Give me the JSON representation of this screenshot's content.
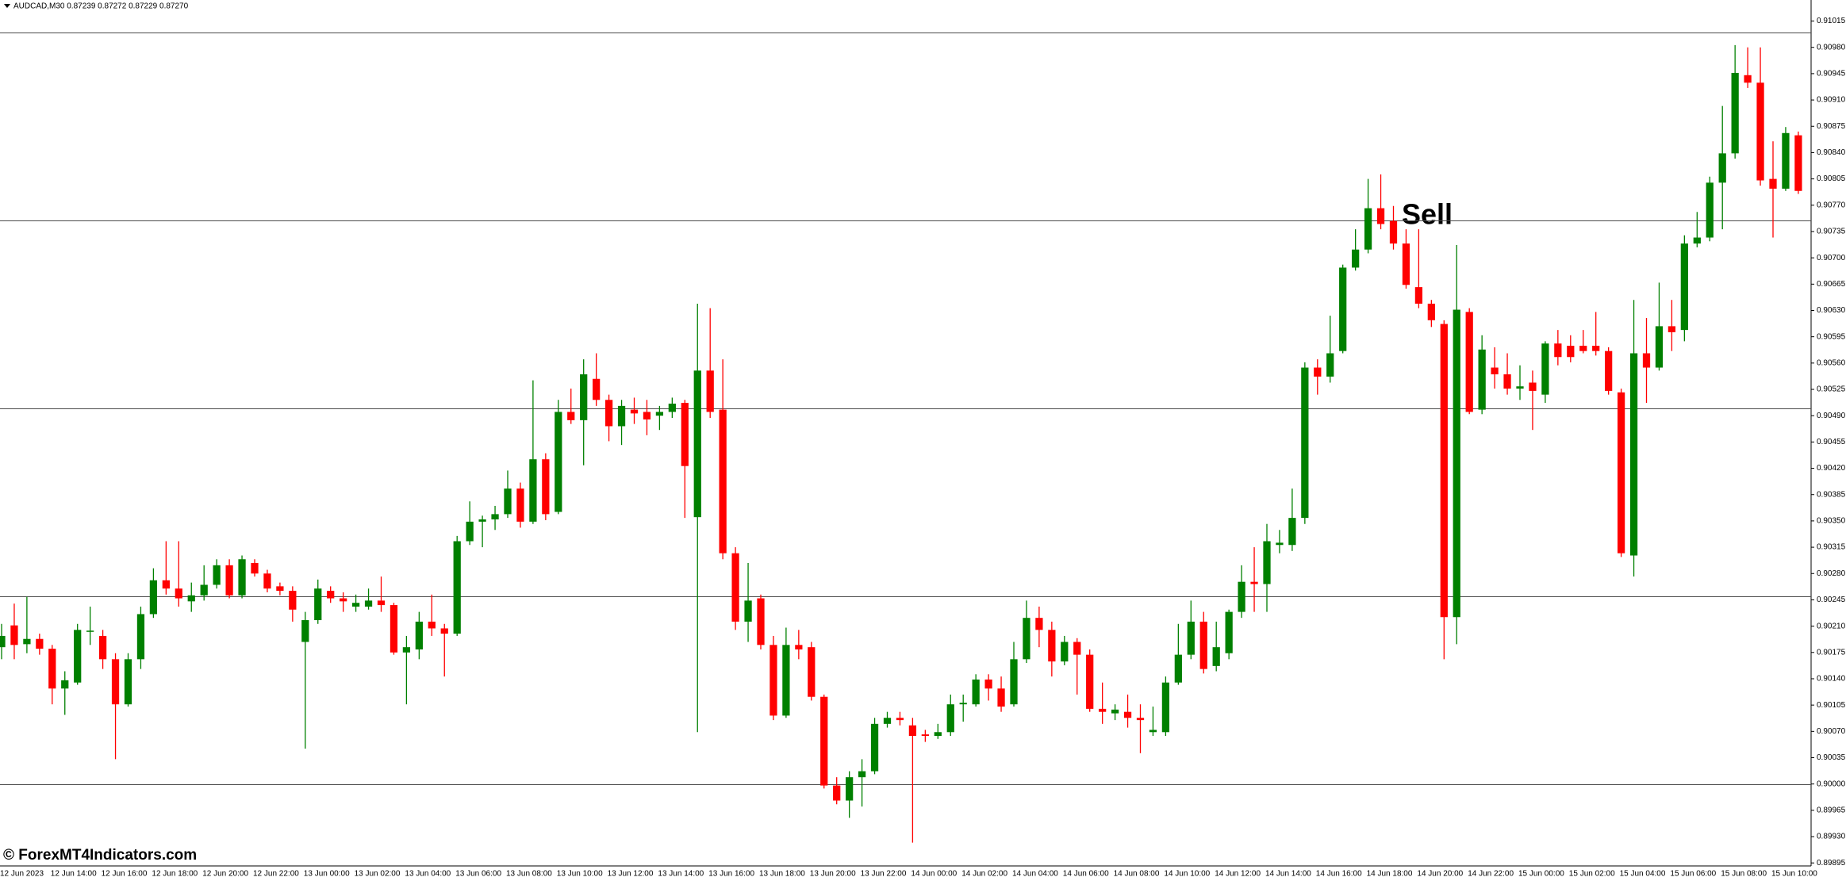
{
  "header": "AUDCAD,M30  0.87239 0.87272 0.87229 0.87270",
  "watermark": "© ForexMT4Indicators.com",
  "annotation": "Sell",
  "chart_data": {
    "type": "candlestick",
    "up_color": "#008000",
    "down_color": "#ff0000",
    "level_color": "#4a4a4a",
    "ylim": [
      0.89891,
      0.91043
    ],
    "yticks": [
      0.91015,
      {
        "value": 0.9098,
        "label": "0.90980"
      },
      0.90945,
      {
        "value": 0.9091,
        "label": "0.90910"
      },
      0.90875,
      {
        "value": 0.9084,
        "label": "0.90840"
      },
      0.90805,
      {
        "value": 0.9077,
        "label": "0.90770"
      },
      0.90735,
      {
        "value": 0.907,
        "label": "0.90700"
      },
      0.90665,
      {
        "value": 0.9063,
        "label": "0.90630"
      },
      0.90595,
      {
        "value": 0.9056,
        "label": "0.90560"
      },
      0.90525,
      {
        "value": 0.9049,
        "label": "0.90490"
      },
      0.90455,
      {
        "value": 0.9042,
        "label": "0.90420"
      },
      0.90385,
      {
        "value": 0.9035,
        "label": "0.90350"
      },
      0.90315,
      {
        "value": 0.9028,
        "label": "0.90280"
      },
      0.90245,
      {
        "value": 0.9021,
        "label": "0.90210"
      },
      0.90175,
      {
        "value": 0.9014,
        "label": "0.90140"
      },
      0.90105,
      {
        "value": 0.9007,
        "label": "0.90070"
      },
      0.90035,
      {
        "value": 0.9,
        "label": "0.90000"
      },
      0.89965,
      {
        "value": 0.8993,
        "label": "0.89930"
      },
      0.89895
    ],
    "hlines": [
      0.91,
      0.9075,
      0.905,
      0.9025,
      0.9
    ],
    "xtick_labels": [
      "12 Jun 2023",
      "12 Jun 14:00",
      "12 Jun 16:00",
      "12 Jun 18:00",
      "12 Jun 20:00",
      "12 Jun 22:00",
      "13 Jun 00:00",
      "13 Jun 02:00",
      "13 Jun 04:00",
      "13 Jun 06:00",
      "13 Jun 08:00",
      "13 Jun 10:00",
      "13 Jun 12:00",
      "13 Jun 14:00",
      "13 Jun 16:00",
      "13 Jun 18:00",
      "13 Jun 20:00",
      "13 Jun 22:00",
      "14 Jun 00:00",
      "14 Jun 02:00",
      "14 Jun 04:00",
      "14 Jun 06:00",
      "14 Jun 08:00",
      "14 Jun 10:00",
      "14 Jun 12:00",
      "14 Jun 14:00",
      "14 Jun 16:00",
      "14 Jun 18:00",
      "14 Jun 20:00",
      "14 Jun 22:00",
      "15 Jun 00:00",
      "15 Jun 02:00",
      "15 Jun 04:00",
      "15 Jun 06:00",
      "15 Jun 08:00",
      "15 Jun 10:00"
    ],
    "open": [
      0.90182,
      0.90211,
      0.90186,
      0.90193,
      0.9018,
      0.90127,
      0.90135,
      0.90204,
      0.90197,
      0.90166,
      0.90106,
      0.90166,
      0.90226,
      0.90271,
      0.9026,
      0.90243,
      0.90251,
      0.90265,
      0.90291,
      0.90251,
      0.90294,
      0.9028,
      0.90263,
      0.90257,
      0.90189,
      0.90218,
      0.90257,
      0.90247,
      0.90236,
      0.90236,
      0.90244,
      0.90238,
      0.90175,
      0.90179,
      0.90216,
      0.90207,
      0.902,
      0.90323,
      0.90349,
      0.90352,
      0.90359,
      0.90393,
      0.90349,
      0.90432,
      0.90362,
      0.90495,
      0.90484,
      0.90539,
      0.90511,
      0.90476,
      0.90498,
      0.90495,
      0.9049,
      0.90495,
      0.90507,
      0.90355,
      0.9055,
      0.90498,
      0.90307,
      0.90216,
      0.90247,
      0.90185,
      0.90091,
      0.90185,
      0.90182,
      0.90116,
      0.89998,
      0.89978,
      0.90009,
      0.90017,
      0.9008,
      0.90088,
      0.90078,
      0.90066,
      0.90064,
      0.90069,
      0.90106,
      0.90106,
      0.90139,
      0.90127,
      0.90106,
      0.90166,
      0.90221,
      0.90205,
      0.90163,
      0.90189,
      0.90172,
      0.901,
      0.90094,
      0.90096,
      0.90088,
      0.90069,
      0.90069,
      0.90135,
      0.90172,
      0.90216,
      0.90157,
      0.90174,
      0.90229,
      0.90269,
      0.90266,
      0.90318,
      0.90318,
      0.90354,
      0.90554,
      0.90542,
      0.90576,
      0.90687,
      0.90711,
      0.90766,
      0.90749,
      0.90719,
      0.90661,
      0.90639,
      0.90612,
      0.90222,
      0.90628,
      0.90498,
      0.90554,
      0.90545,
      0.90526,
      0.90534,
      0.90518,
      0.90586,
      0.90583,
      0.90583,
      0.90583,
      0.90576,
      0.90521,
      0.90304,
      0.90573,
      0.90554,
      0.90609,
      0.90604,
      0.90719,
      0.90727,
      0.908,
      0.90839,
      0.90943,
      0.90933,
      0.90805,
      0.90792,
      0.90863
    ],
    "high": [
      0.90213,
      0.9024,
      0.90249,
      0.902,
      0.90185,
      0.9015,
      0.90213,
      0.90236,
      0.90205,
      0.90174,
      0.90174,
      0.90236,
      0.90287,
      0.90323,
      0.90323,
      0.90268,
      0.90291,
      0.90299,
      0.90299,
      0.90304,
      0.90299,
      0.90285,
      0.90268,
      0.90263,
      0.90229,
      0.90272,
      0.90263,
      0.90255,
      0.90252,
      0.9026,
      0.90276,
      0.90241,
      0.90197,
      0.90229,
      0.90252,
      0.90213,
      0.9033,
      0.90376,
      0.90357,
      0.9037,
      0.90417,
      0.90401,
      0.90537,
      0.9044,
      0.90511,
      0.90526,
      0.90565,
      0.90573,
      0.90518,
      0.90511,
      0.90514,
      0.90511,
      0.90503,
      0.90514,
      0.90511,
      0.90639,
      0.90633,
      0.90565,
      0.90315,
      0.90294,
      0.90252,
      0.90197,
      0.90208,
      0.90205,
      0.90189,
      0.90119,
      0.90009,
      0.90017,
      0.90033,
      0.90088,
      0.90096,
      0.90096,
      0.90088,
      0.90072,
      0.9008,
      0.90119,
      0.90119,
      0.90146,
      0.90146,
      0.90143,
      0.90189,
      0.90244,
      0.90236,
      0.90216,
      0.90197,
      0.90194,
      0.90179,
      0.90135,
      0.90106,
      0.90119,
      0.90106,
      0.90103,
      0.90143,
      0.90213,
      0.90244,
      0.90229,
      0.90216,
      0.90232,
      0.90291,
      0.90315,
      0.90346,
      0.90338,
      0.90393,
      0.90561,
      0.90565,
      0.90623,
      0.90691,
      0.90738,
      0.90805,
      0.90811,
      0.90769,
      0.90738,
      0.90738,
      0.90644,
      0.90617,
      0.90717,
      0.90633,
      0.90597,
      0.90581,
      0.90573,
      0.90557,
      0.9055,
      0.90589,
      0.90604,
      0.90597,
      0.90604,
      0.90628,
      0.90581,
      0.90526,
      0.90644,
      0.9062,
      0.90667,
      0.90644,
      0.9073,
      0.90761,
      0.90808,
      0.90902,
      0.90983,
      0.9098,
      0.9098,
      0.90855,
      0.90874,
      0.90868
    ],
    "low": [
      0.90166,
      0.90166,
      0.90174,
      0.90172,
      0.90106,
      0.90092,
      0.90132,
      0.90185,
      0.90153,
      0.90033,
      0.90103,
      0.90153,
      0.90221,
      0.90252,
      0.90236,
      0.90229,
      0.90244,
      0.9026,
      0.90247,
      0.90247,
      0.90276,
      0.90255,
      0.90251,
      0.90216,
      0.90047,
      0.90213,
      0.90241,
      0.90229,
      0.90229,
      0.90232,
      0.90229,
      0.90172,
      0.90106,
      0.90166,
      0.90197,
      0.90143,
      0.90197,
      0.90318,
      0.90315,
      0.90338,
      0.90354,
      0.90341,
      0.90346,
      0.90351,
      0.90359,
      0.90479,
      0.90424,
      0.90503,
      0.90456,
      0.90451,
      0.90479,
      0.90464,
      0.90471,
      0.90487,
      0.90354,
      0.90069,
      0.90487,
      0.90299,
      0.90205,
      0.90189,
      0.90179,
      0.90085,
      0.90088,
      0.90166,
      0.90111,
      0.89994,
      0.89973,
      0.89955,
      0.8997,
      0.90013,
      0.90075,
      0.90078,
      0.89922,
      0.90056,
      0.9006,
      0.90064,
      0.90083,
      0.90103,
      0.90111,
      0.90096,
      0.90103,
      0.90161,
      0.90182,
      0.90143,
      0.90158,
      0.90119,
      0.90096,
      0.9008,
      0.90085,
      0.90075,
      0.90041,
      0.90064,
      0.90064,
      0.90132,
      0.90166,
      0.90147,
      0.9015,
      0.90166,
      0.90221,
      0.90229,
      0.90229,
      0.90307,
      0.9031,
      0.90346,
      0.90518,
      0.90534,
      0.90573,
      0.90683,
      0.90706,
      0.90738,
      0.90711,
      0.90659,
      0.90633,
      0.90608,
      0.90166,
      0.90186,
      0.90492,
      0.90492,
      0.90526,
      0.90518,
      0.90511,
      0.90471,
      0.90507,
      0.90557,
      0.90561,
      0.90573,
      0.9057,
      0.90518,
      0.90302,
      0.90276,
      0.90507,
      0.9055,
      0.90576,
      0.90589,
      0.90714,
      0.90722,
      0.90738,
      0.90832,
      0.90926,
      0.90796,
      0.90727,
      0.90789,
      0.90785
    ],
    "close": [
      0.90197,
      0.90185,
      0.90193,
      0.9018,
      0.90127,
      0.90138,
      0.90205,
      0.90204,
      0.90166,
      0.90106,
      0.90166,
      0.90226,
      0.90271,
      0.9026,
      0.90247,
      0.90251,
      0.90265,
      0.90291,
      0.90251,
      0.90299,
      0.9028,
      0.9026,
      0.90257,
      0.90232,
      0.90218,
      0.9026,
      0.90247,
      0.90243,
      0.90241,
      0.90244,
      0.90238,
      0.90175,
      0.90182,
      0.90216,
      0.90207,
      0.902,
      0.90323,
      0.90349,
      0.90352,
      0.90359,
      0.90393,
      0.90349,
      0.90432,
      0.90359,
      0.90495,
      0.90484,
      0.90545,
      0.90511,
      0.90476,
      0.90503,
      0.90493,
      0.90485,
      0.90495,
      0.90506,
      0.90423,
      0.9055,
      0.90495,
      0.90307,
      0.90216,
      0.90244,
      0.90185,
      0.90091,
      0.90185,
      0.90179,
      0.90116,
      0.89998,
      0.89978,
      0.90009,
      0.90017,
      0.9008,
      0.90088,
      0.90085,
      0.90064,
      0.90064,
      0.90069,
      0.90106,
      0.90108,
      0.90139,
      0.90127,
      0.90103,
      0.90166,
      0.90221,
      0.90205,
      0.90163,
      0.90189,
      0.90172,
      0.901,
      0.90096,
      0.90099,
      0.90088,
      0.90085,
      0.90072,
      0.90135,
      0.90172,
      0.90216,
      0.90153,
      0.90182,
      0.90229,
      0.90269,
      0.90266,
      0.90323,
      0.90321,
      0.90354,
      0.90554,
      0.90542,
      0.90573,
      0.90687,
      0.90711,
      0.90766,
      0.90745,
      0.90719,
      0.90664,
      0.90639,
      0.90617,
      0.90222,
      0.90631,
      0.90495,
      0.90578,
      0.90545,
      0.90526,
      0.90529,
      0.90523,
      0.90586,
      0.90568,
      0.90568,
      0.90576,
      0.90576,
      0.90523,
      0.90307,
      0.90573,
      0.90554,
      0.90609,
      0.90601,
      0.90719,
      0.90727,
      0.908,
      0.90839,
      0.90946,
      0.90933,
      0.90803,
      0.90792,
      0.90866,
      0.90789
    ]
  }
}
